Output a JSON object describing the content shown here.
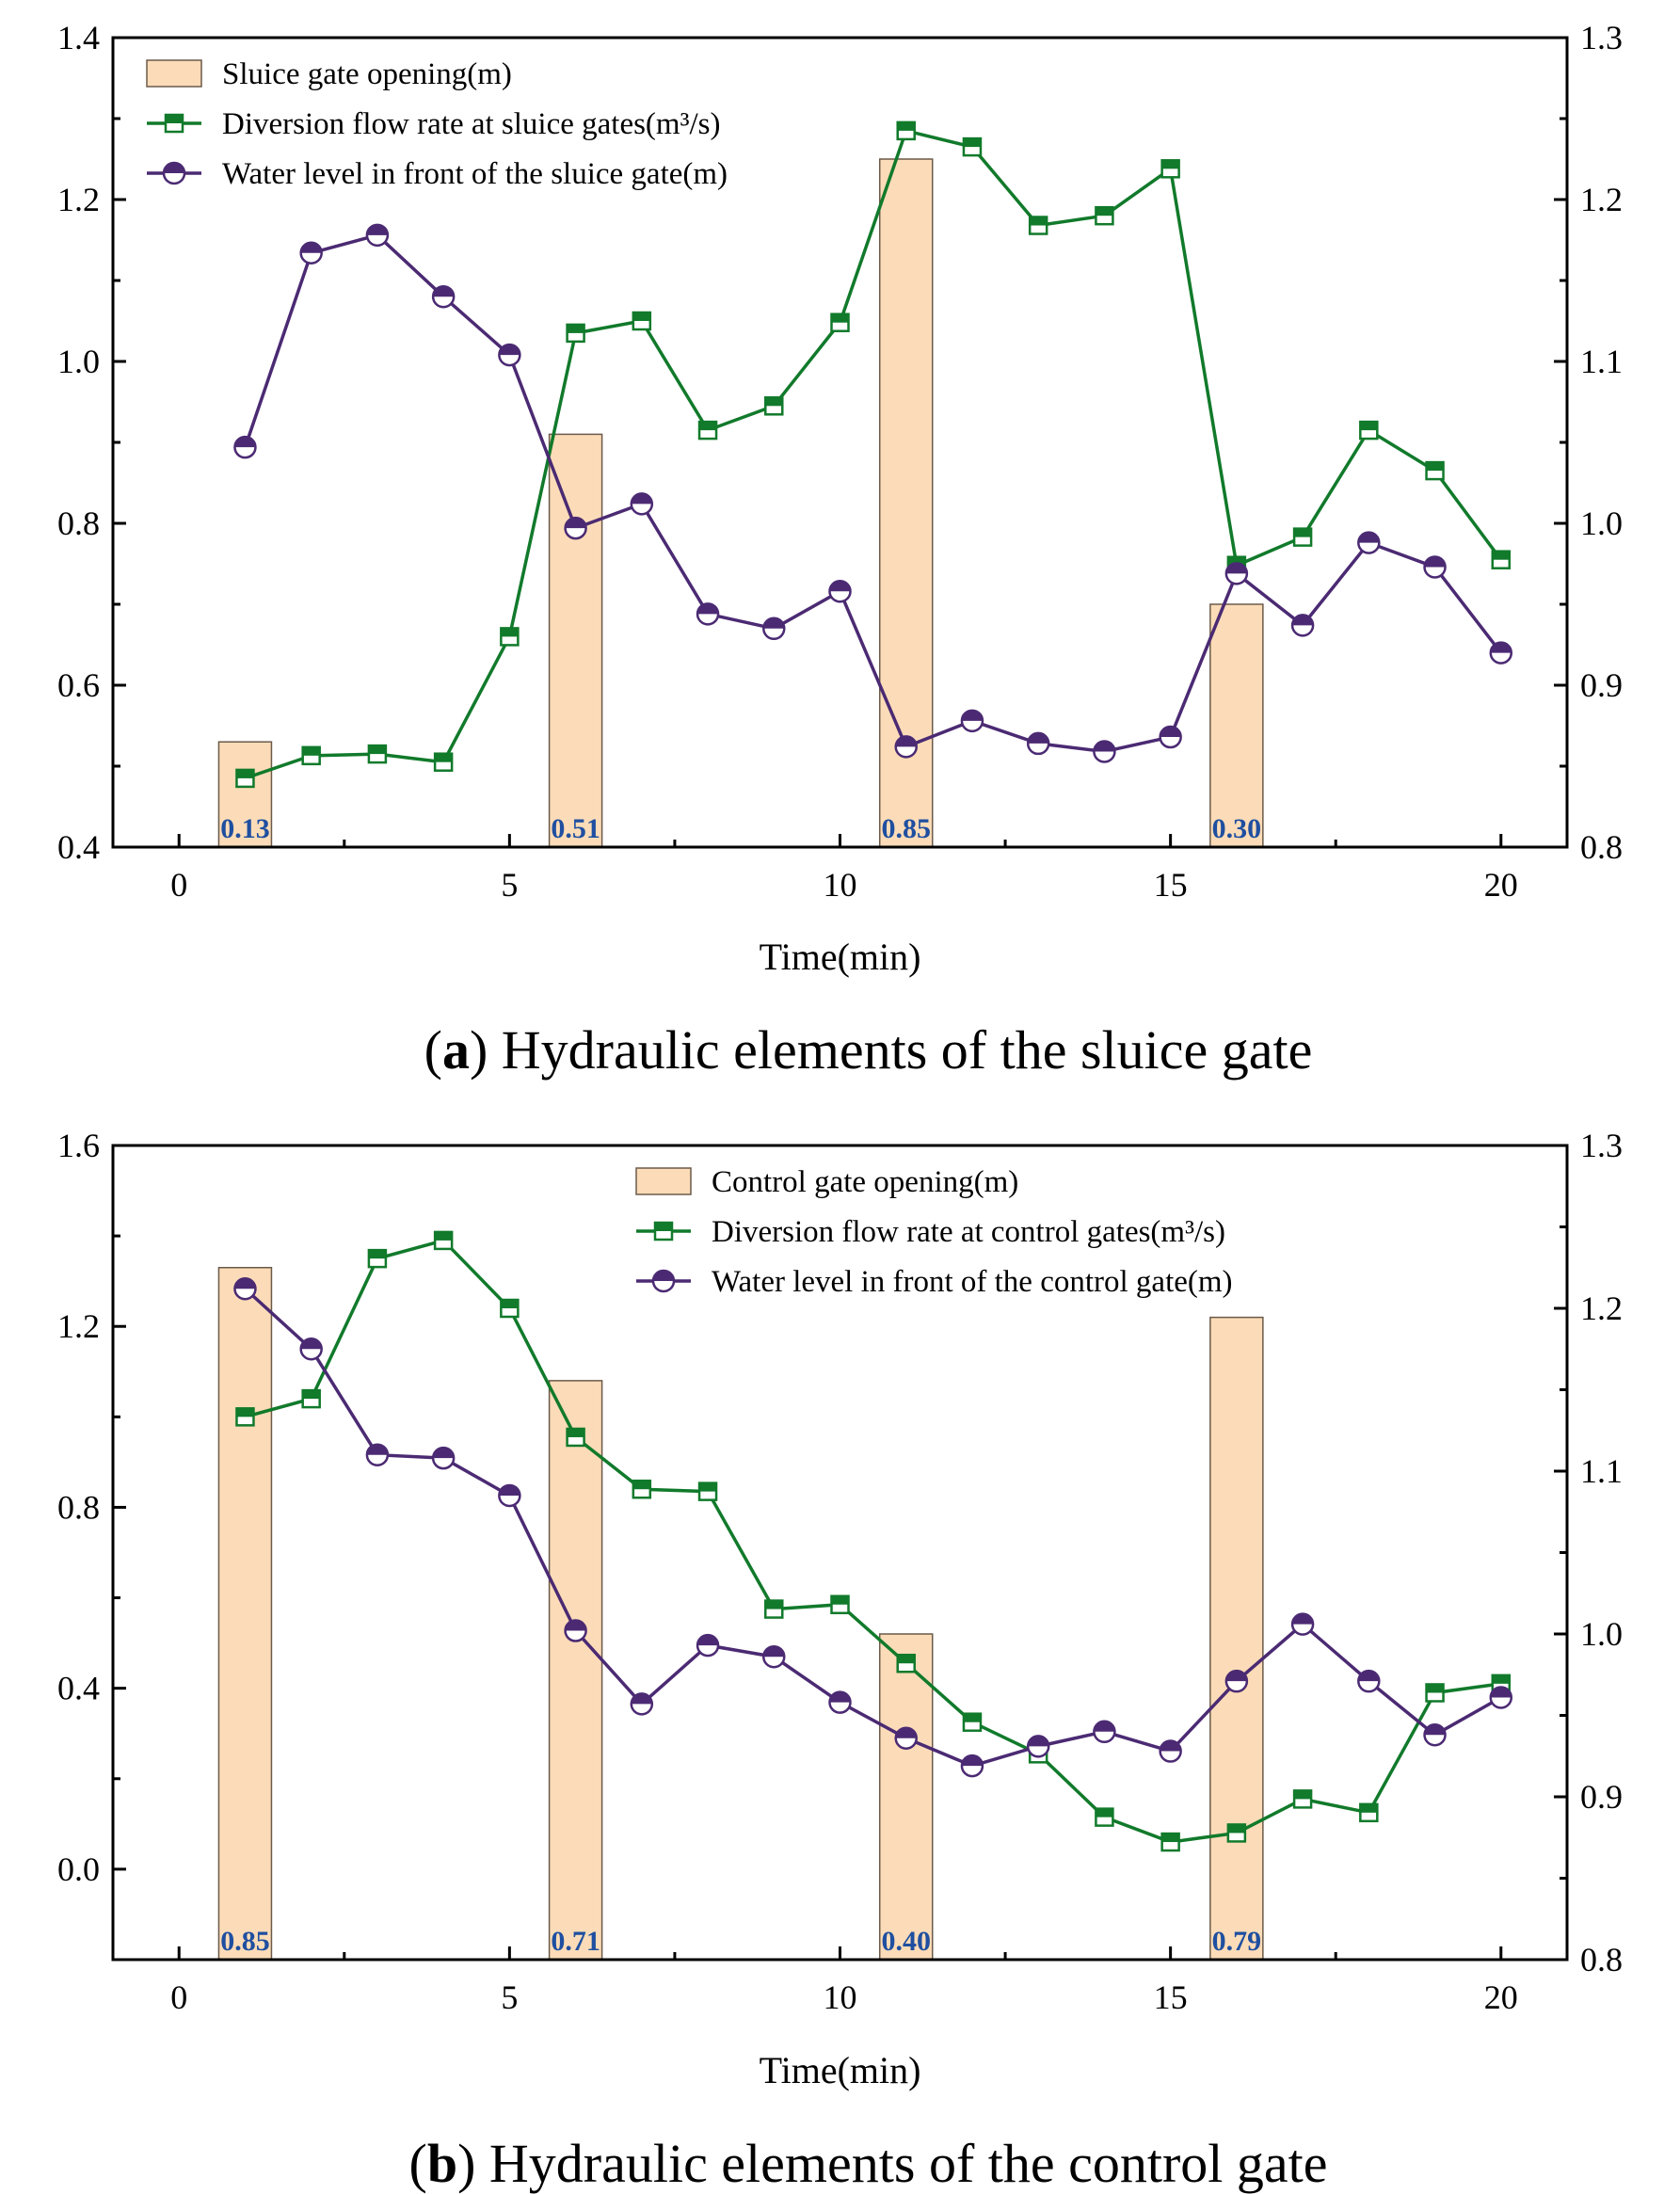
{
  "colors": {
    "bar_fill": "#fcdcb8",
    "bar_stroke": "#6b5a4a",
    "flow": "#117a2b",
    "level": "#4b2a73",
    "bar_label": "#1f4fa0"
  },
  "chart_data": [
    {
      "type": "bar+line",
      "id": "a",
      "caption_letter": "a",
      "caption_open": "(",
      "caption_close": ")",
      "caption_text": " Hydraulic elements of the sluice gate",
      "xlabel": "Time(min)",
      "xlim": [
        -1,
        21
      ],
      "xticks": [
        "0",
        "5",
        "10",
        "15",
        "20"
      ],
      "xtick_values": [
        0,
        5,
        10,
        15,
        20
      ],
      "left_ylim": [
        0.4,
        1.4
      ],
      "left_yticks": [
        "0.4",
        "0.6",
        "0.8",
        "1.0",
        "1.2",
        "1.4"
      ],
      "left_ytick_values": [
        0.4,
        0.6,
        0.8,
        1.0,
        1.2,
        1.4
      ],
      "right_ylim": [
        0.8,
        1.3
      ],
      "right_yticks": [
        "0.8",
        "0.9",
        "1.0",
        "1.1",
        "1.2",
        "1.3"
      ],
      "right_ytick_values": [
        0.8,
        0.9,
        1.0,
        1.1,
        1.2,
        1.3
      ],
      "legend": {
        "bar": "Sluice gate opening(m)",
        "flow": "Diversion flow rate at sluice gates(m³/s)",
        "level": "Water level in front of the sluice gate(m)"
      },
      "bars": {
        "x": [
          1,
          6,
          11,
          16
        ],
        "heights_left_axis": [
          0.53,
          0.91,
          1.25,
          0.7
        ],
        "labels": [
          "0.13",
          "0.51",
          "0.85",
          "0.30"
        ]
      },
      "flow": {
        "x": [
          1,
          2,
          3,
          4,
          5,
          6,
          7,
          8,
          9,
          10,
          11,
          12,
          13,
          14,
          15,
          16,
          17,
          18,
          19,
          20
        ],
        "y": [
          0.485,
          0.513,
          0.515,
          0.505,
          0.66,
          1.035,
          1.05,
          0.915,
          0.945,
          1.048,
          1.285,
          1.265,
          1.168,
          1.18,
          1.238,
          0.748,
          0.783,
          0.915,
          0.865,
          0.755
        ]
      },
      "level": {
        "x": [
          1,
          2,
          3,
          4,
          5,
          6,
          7,
          8,
          9,
          10,
          11,
          12,
          13,
          14,
          15,
          16,
          17,
          18,
          19,
          20
        ],
        "y": [
          1.047,
          1.167,
          1.178,
          1.14,
          1.104,
          0.997,
          1.012,
          0.944,
          0.935,
          0.958,
          0.862,
          0.878,
          0.864,
          0.859,
          0.868,
          0.969,
          0.937,
          0.988,
          0.973,
          0.92
        ]
      }
    },
    {
      "type": "bar+line",
      "id": "b",
      "caption_letter": "b",
      "caption_open": "(",
      "caption_close": ")",
      "caption_text": " Hydraulic elements of the control gate",
      "xlabel": "Time(min)",
      "xlim": [
        -1,
        21
      ],
      "xticks": [
        "0",
        "5",
        "10",
        "15",
        "20"
      ],
      "xtick_values": [
        0,
        5,
        10,
        15,
        20
      ],
      "left_ylim": [
        -0.2,
        1.6
      ],
      "left_yticks": [
        "0.0",
        "0.4",
        "0.8",
        "1.2",
        "1.6"
      ],
      "left_ytick_values": [
        0.0,
        0.4,
        0.8,
        1.2,
        1.6
      ],
      "right_ylim": [
        0.8,
        1.3
      ],
      "right_yticks": [
        "0.8",
        "0.9",
        "1.0",
        "1.1",
        "1.2",
        "1.3"
      ],
      "right_ytick_values": [
        0.8,
        0.9,
        1.0,
        1.1,
        1.2,
        1.3
      ],
      "legend": {
        "bar": "Control gate opening(m)",
        "flow": "Diversion flow rate at control gates(m³/s)",
        "level": "Water level in front of the control gate(m)"
      },
      "bars": {
        "x": [
          1,
          6,
          11,
          16
        ],
        "heights_left_axis": [
          1.33,
          1.08,
          0.52,
          1.22
        ],
        "labels": [
          "0.85",
          "0.71",
          "0.40",
          "0.79"
        ]
      },
      "flow": {
        "x": [
          1,
          2,
          3,
          4,
          5,
          6,
          7,
          8,
          9,
          10,
          11,
          12,
          13,
          14,
          15,
          16,
          17,
          18,
          19,
          20
        ],
        "y": [
          1.0,
          1.04,
          1.35,
          1.39,
          1.24,
          0.955,
          0.84,
          0.835,
          0.575,
          0.585,
          0.455,
          0.325,
          0.255,
          0.115,
          0.06,
          0.08,
          0.155,
          0.125,
          0.39,
          0.41
        ]
      },
      "level": {
        "x": [
          1,
          2,
          3,
          4,
          5,
          6,
          7,
          8,
          9,
          10,
          11,
          12,
          13,
          14,
          15,
          16,
          17,
          18,
          19,
          20
        ],
        "y": [
          1.212,
          1.175,
          1.11,
          1.108,
          1.085,
          1.002,
          0.957,
          0.993,
          0.986,
          0.958,
          0.936,
          0.919,
          0.931,
          0.94,
          0.928,
          0.971,
          1.006,
          0.971,
          0.938,
          0.961
        ]
      }
    }
  ]
}
